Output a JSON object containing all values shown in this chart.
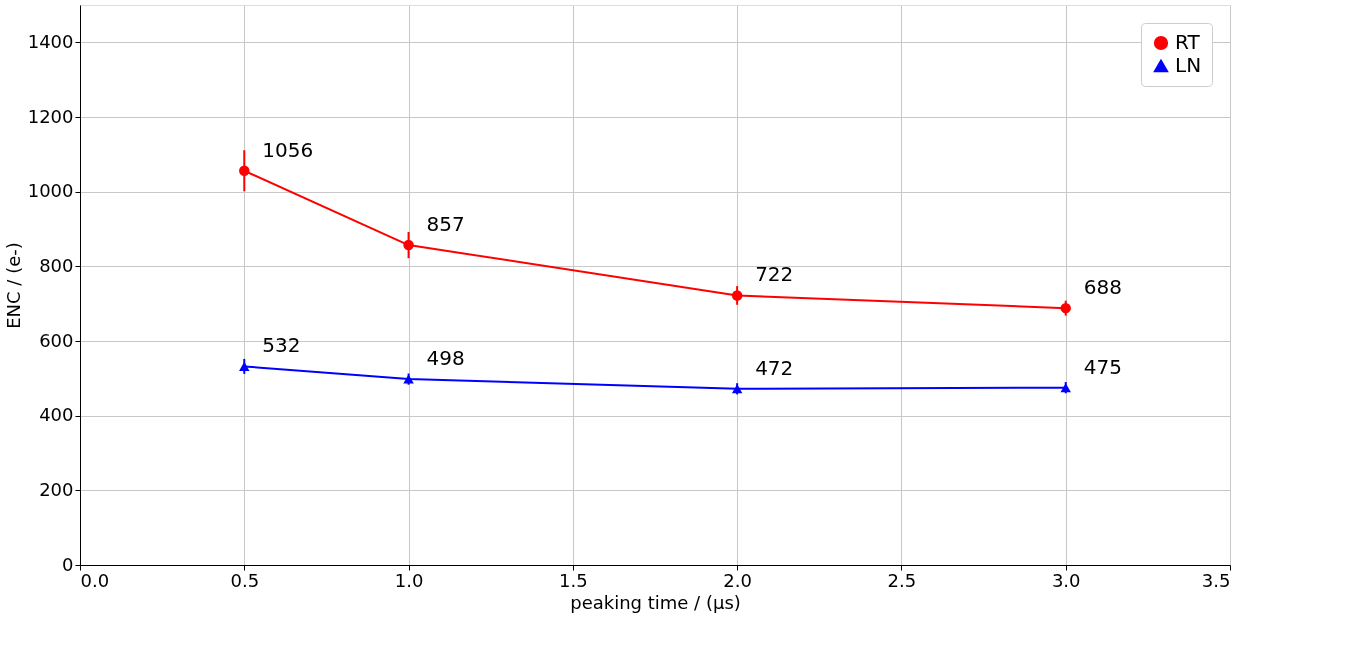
{
  "chart_data": {
    "type": "line",
    "xlabel": "peaking time / (μs)",
    "ylabel": "ENC / (e-)",
    "x": [
      0.5,
      1.0,
      2.0,
      3.0
    ],
    "series": [
      {
        "name": "RT",
        "color": "#ff0000",
        "marker": "circle",
        "values": [
          1056,
          857,
          722,
          688
        ],
        "errors": [
          55,
          35,
          25,
          20
        ]
      },
      {
        "name": "LN",
        "color": "#0000ff",
        "marker": "triangle",
        "values": [
          532,
          498,
          472,
          475
        ],
        "errors": [
          20,
          15,
          15,
          15
        ]
      }
    ],
    "xlim": [
      0,
      3.5
    ],
    "xticks": [
      {
        "value": 0,
        "label": "0.0"
      },
      {
        "value": 0.5,
        "label": "0.5"
      },
      {
        "value": 1,
        "label": "1.0"
      },
      {
        "value": 1.5,
        "label": "1.5"
      },
      {
        "value": 2,
        "label": "2.0"
      },
      {
        "value": 2.5,
        "label": "2.5"
      },
      {
        "value": 3,
        "label": "3.0"
      },
      {
        "value": 3.5,
        "label": "3.5"
      }
    ],
    "ylim": [
      0,
      1500
    ],
    "yticks": [
      0,
      200,
      400,
      600,
      800,
      1000,
      1200,
      1400
    ],
    "grid": true,
    "legend": "top right",
    "data_labels": true,
    "line_style": "solid"
  }
}
